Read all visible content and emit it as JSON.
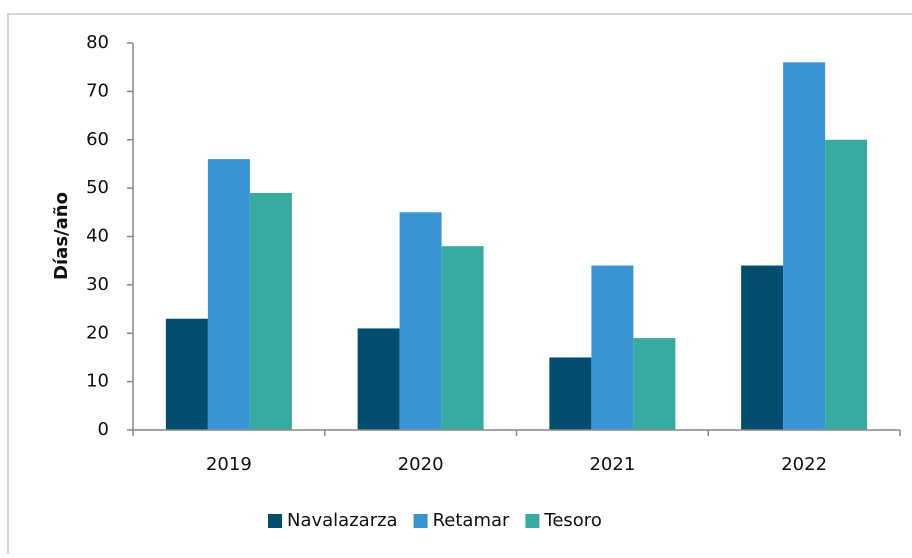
{
  "chart_data": {
    "type": "bar",
    "y_label": "Días/año",
    "categories": [
      "2019",
      "2020",
      "2021",
      "2022"
    ],
    "series": [
      {
        "name": "Navalazarza",
        "color": "#034e6e",
        "values": [
          23,
          21,
          15,
          34
        ]
      },
      {
        "name": "Retamar",
        "color": "#3a93d2",
        "values": [
          56,
          45,
          34,
          76
        ]
      },
      {
        "name": "Tesoro",
        "color": "#37aba0",
        "values": [
          49,
          38,
          19,
          60
        ]
      }
    ],
    "ylim": [
      0,
      80
    ],
    "yticks": [
      0,
      10,
      20,
      30,
      40,
      50,
      60,
      70,
      80
    ],
    "legend": "bottom"
  }
}
